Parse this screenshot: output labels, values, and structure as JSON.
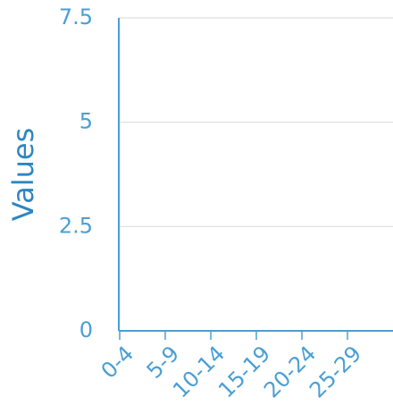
{
  "chart_data": {
    "type": "bar",
    "title": "",
    "xlabel": "",
    "ylabel": "Values",
    "categories": [
      "0-4",
      "5-9",
      "10-14",
      "15-19",
      "20-24",
      "25-29"
    ],
    "series": [
      {
        "values": [
          null,
          null,
          null,
          null,
          null,
          null
        ]
      }
    ],
    "ylim": [
      0,
      7.5
    ],
    "yticks": [
      "0",
      "2.5",
      "5",
      "7.5"
    ],
    "grid": true,
    "legend": "none",
    "colors": {
      "axis": "#4a9fd4",
      "tick_text": "#4a9fd4",
      "ylabel": "#2e86c1",
      "grid": "#dddddd"
    }
  }
}
